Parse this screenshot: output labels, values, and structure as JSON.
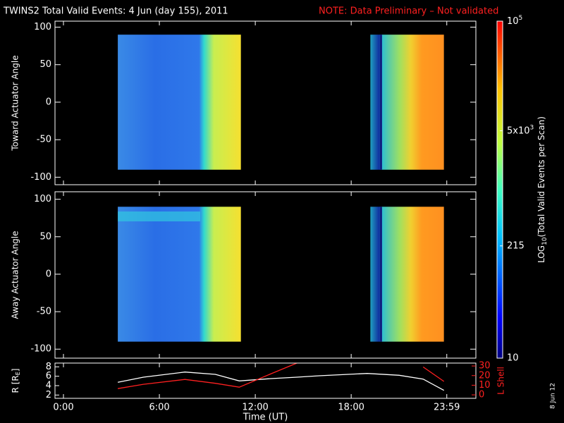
{
  "header": {
    "title": "TWINS2  Total Valid Events:  4 Jun (day 155), 2011",
    "note": "NOTE: Data Preliminary – Not validated"
  },
  "stamp": "8 Jun 12",
  "chart_data": [
    {
      "type": "heatmap",
      "ylabel": "Toward Actuator Angle",
      "ylim": [
        -110,
        108
      ],
      "yticks": [
        -100,
        -50,
        0,
        50,
        100
      ],
      "extent_y": [
        -90,
        90
      ],
      "blocks": [
        [
          3.4,
          11.1
        ],
        [
          19.2,
          23.8
        ]
      ]
    },
    {
      "type": "heatmap",
      "ylabel": "Away Actuator Angle",
      "ylim": [
        -112,
        110
      ],
      "yticks": [
        -100,
        -50,
        0,
        50,
        100
      ],
      "extent_y": [
        -90,
        90
      ],
      "blocks": [
        [
          3.4,
          11.1
        ],
        [
          19.2,
          23.8
        ]
      ]
    },
    {
      "type": "colorbar",
      "label": "LOG",
      "label_sub": "10",
      "label_rest": "(Total Valid Events per Scan)",
      "log": true,
      "ylim": [
        10,
        100000
      ],
      "yticks": [
        10,
        215,
        {
          "value": 5000,
          "label": "5x10",
          "exp": "3"
        },
        {
          "value": 100000,
          "label": "10",
          "exp": "5"
        }
      ]
    },
    {
      "type": "line",
      "xlabel": "Time (UT)",
      "ylabel": "R [R",
      "ylabel_sub": "E",
      "ylabel_end": "]",
      "y2label": "L Shell",
      "xlim": [
        -0.53,
        25.8
      ],
      "xticks": [
        {
          "value": 0,
          "label": "0:00"
        },
        {
          "value": 6,
          "label": "6:00"
        },
        {
          "value": 12,
          "label": "12:00"
        },
        {
          "value": 18,
          "label": "18:00"
        },
        {
          "value": 23.98,
          "label": "23:59"
        }
      ],
      "ylim": [
        1.3,
        8.8
      ],
      "yticks": [
        2,
        4,
        6,
        8
      ],
      "y2lim": [
        -3.6,
        33
      ],
      "y2ticks": [
        0,
        10,
        20,
        30
      ],
      "x": [
        3.4,
        5,
        7.6,
        9.5,
        11,
        13,
        14.6,
        16,
        19,
        21,
        22.5,
        23.8
      ],
      "series": [
        {
          "color": "#ffffff",
          "values": [
            4.7,
            5.8,
            6.9,
            6.4,
            5.0,
            5.5,
            5.8,
            6.1,
            6.6,
            6.2,
            5.4,
            3.0
          ]
        },
        {
          "color": "#ff2020",
          "axis": "y2",
          "values": [
            6.5,
            11,
            16,
            12,
            8,
            22,
            33,
            null,
            null,
            null,
            29,
            14
          ]
        }
      ]
    }
  ]
}
